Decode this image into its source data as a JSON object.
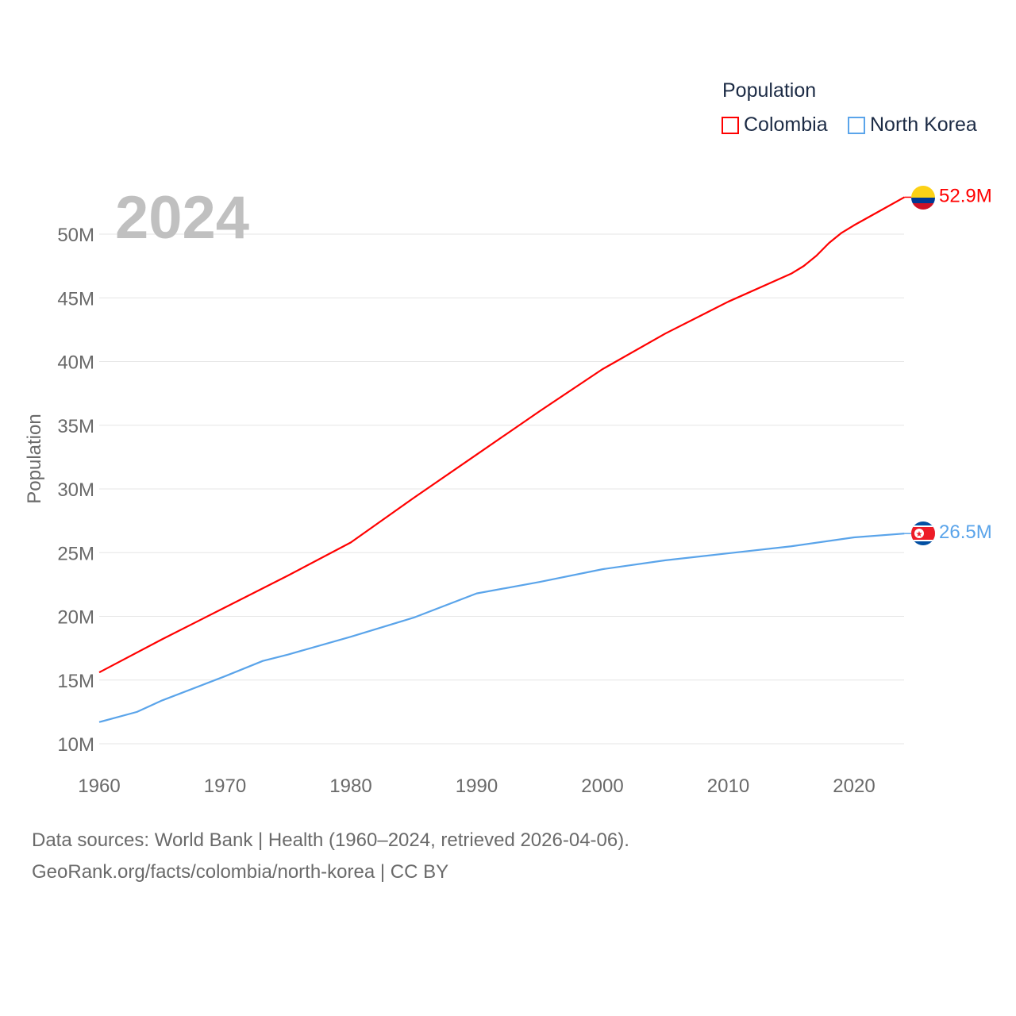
{
  "chart_data": {
    "type": "line",
    "title": "Population",
    "year_label": "2024",
    "ylabel": "Population",
    "xlabel": "",
    "xlim": [
      1960,
      2024
    ],
    "ylim": [
      10,
      53
    ],
    "y_unit": "millions",
    "x_ticks": [
      1960,
      1970,
      1980,
      1990,
      2000,
      2010,
      2020
    ],
    "y_ticks": [
      10,
      15,
      20,
      25,
      30,
      35,
      40,
      45,
      50
    ],
    "y_tick_labels": [
      "10M",
      "15M",
      "20M",
      "25M",
      "30M",
      "35M",
      "40M",
      "45M",
      "50M"
    ],
    "grid": true,
    "legend_position": "top-right",
    "series": [
      {
        "name": "Colombia",
        "color": "#ff0000",
        "end_label": "52.9M",
        "x": [
          1960,
          1965,
          1970,
          1975,
          1980,
          1985,
          1990,
          1995,
          2000,
          2005,
          2010,
          2015,
          2016,
          2017,
          2018,
          2019,
          2020,
          2022,
          2024
        ],
        "values": [
          15.6,
          18.2,
          20.7,
          23.2,
          25.8,
          29.3,
          32.7,
          36.1,
          39.4,
          42.2,
          44.7,
          46.9,
          47.5,
          48.3,
          49.3,
          50.1,
          50.7,
          51.8,
          52.9
        ]
      },
      {
        "name": "North Korea",
        "color": "#5aa4ea",
        "end_label": "26.5M",
        "x": [
          1960,
          1963,
          1965,
          1970,
          1973,
          1975,
          1980,
          1985,
          1990,
          1995,
          2000,
          2005,
          2010,
          2015,
          2020,
          2024
        ],
        "values": [
          11.7,
          12.5,
          13.4,
          15.3,
          16.5,
          17.0,
          18.4,
          19.9,
          21.8,
          22.7,
          23.7,
          24.4,
          24.95,
          25.5,
          26.2,
          26.5
        ]
      }
    ]
  },
  "footer": {
    "line1": "Data sources: World Bank | Health (1960–2024, retrieved 2026-04-06).",
    "line2": "GeoRank.org/facts/colombia/north-korea | CC BY"
  }
}
